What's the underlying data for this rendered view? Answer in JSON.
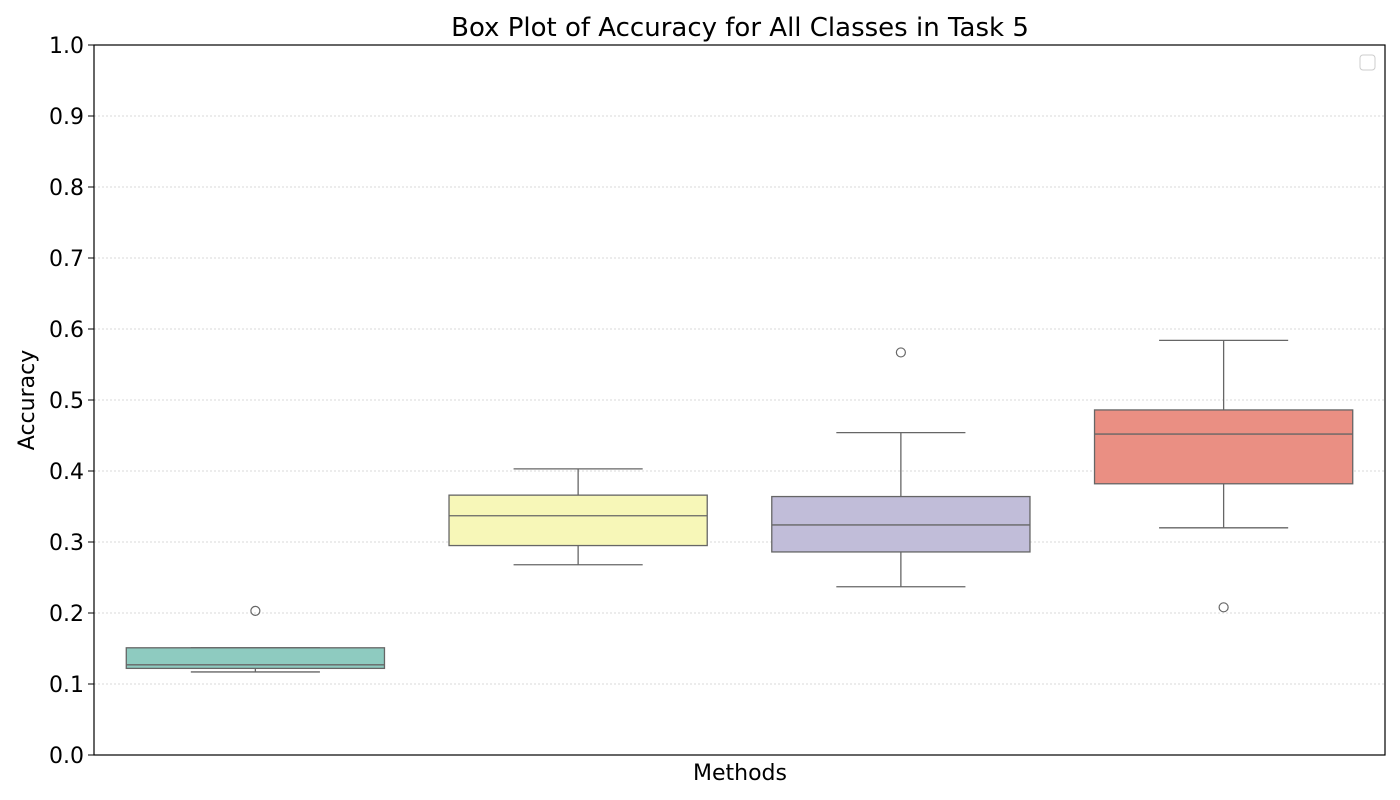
{
  "chart_data": {
    "type": "box",
    "title": "Box Plot of Accuracy for All Classes in Task 5",
    "xlabel": "Methods",
    "ylabel": "Accuracy",
    "ylim": [
      0,
      1.0
    ],
    "yticks": [
      "0.0",
      "0.1",
      "0.2",
      "0.3",
      "0.4",
      "0.5",
      "0.6",
      "0.7",
      "0.8",
      "0.9",
      "1.0"
    ],
    "grid": "horizontal dotted",
    "legend": {
      "placement": "top-right",
      "entries": []
    },
    "boxes": [
      {
        "color": "#8ecbc0",
        "whisker_low": 0.117,
        "q1": 0.122,
        "median": 0.127,
        "q3": 0.151,
        "whisker_high": 0.151,
        "outliers": [
          0.203
        ]
      },
      {
        "color": "#f7f7b8",
        "whisker_low": 0.268,
        "q1": 0.295,
        "median": 0.337,
        "q3": 0.366,
        "whisker_high": 0.403,
        "outliers": []
      },
      {
        "color": "#c1bdd9",
        "whisker_low": 0.237,
        "q1": 0.286,
        "median": 0.324,
        "q3": 0.364,
        "whisker_high": 0.454,
        "outliers": [
          0.567
        ]
      },
      {
        "color": "#ea8f83",
        "whisker_low": 0.32,
        "q1": 0.382,
        "median": 0.452,
        "q3": 0.486,
        "whisker_high": 0.584,
        "outliers": [
          0.208
        ]
      }
    ]
  }
}
